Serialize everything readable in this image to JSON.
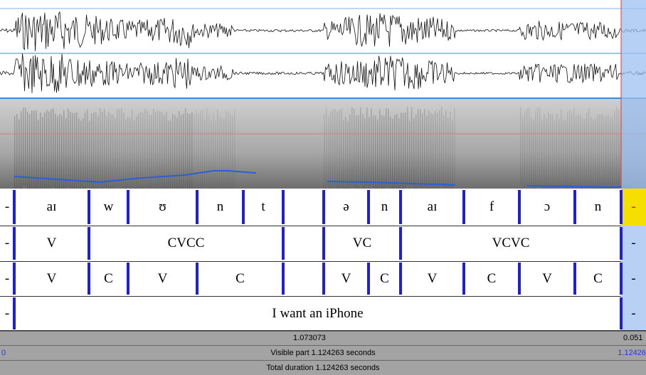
{
  "tiers": [
    {
      "labels": [
        "-",
        "aɪ",
        "w",
        "ʊ",
        "n",
        "t",
        "ə",
        "n",
        "aɪ",
        "f",
        "ɔ",
        "n",
        "-"
      ]
    },
    {
      "labels": [
        "-",
        "V",
        "CVCC",
        "VC",
        "VCVC",
        "-"
      ]
    },
    {
      "labels": [
        "-",
        "V",
        "C",
        "V",
        "C",
        "V",
        "C",
        "V",
        "C",
        "V",
        "C",
        "-"
      ]
    },
    {
      "labels": [
        "-",
        "I want an iPhone",
        "-"
      ]
    }
  ],
  "status": {
    "selection": "1.073073",
    "after": "0.051",
    "start": "0",
    "visible": "Visible part 1.124263 seconds",
    "end": "1.12426",
    "total": "Total duration 1.124263 seconds"
  }
}
